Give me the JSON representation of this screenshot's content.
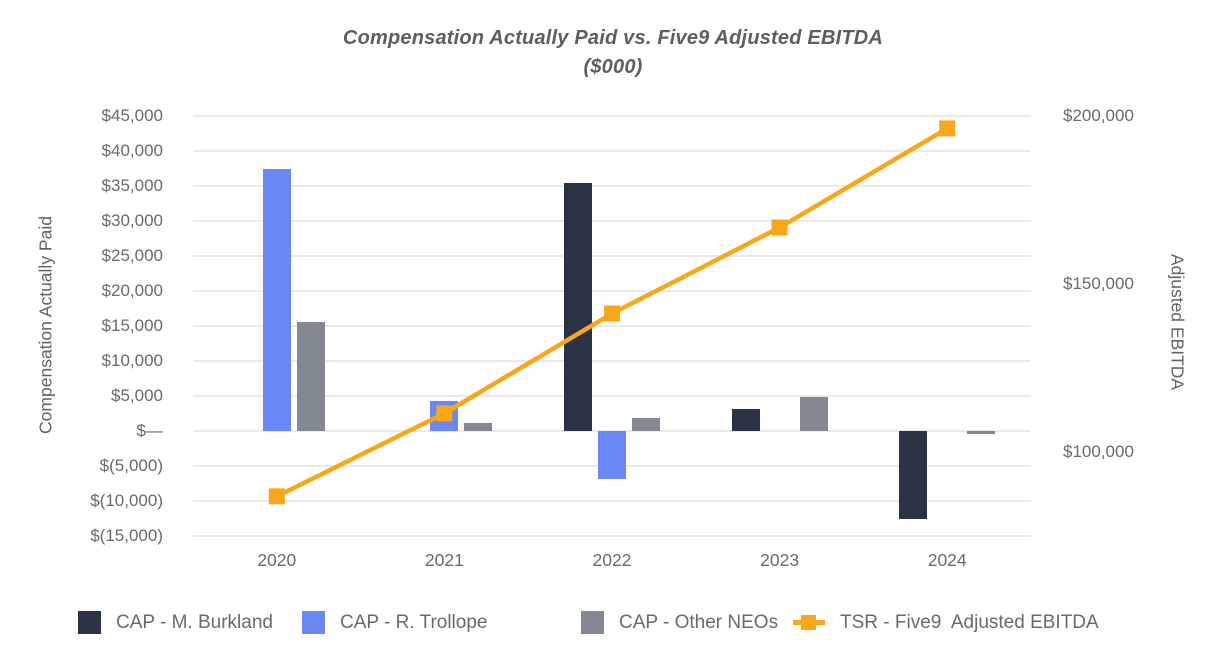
{
  "chart_data": {
    "type": "combo (grouped bar + line, dual y-axis)",
    "title": "Compensation Actually Paid vs. Five9 Adjusted EBITDA",
    "subtitle": "($000)",
    "categories": [
      "2020",
      "2021",
      "2022",
      "2023",
      "2024"
    ],
    "bar_series": [
      {
        "name": "CAP - M. Burkland",
        "color": "#2b3244",
        "values": [
          0,
          0,
          35400,
          3200,
          -12600
        ]
      },
      {
        "name": "CAP - R. Trollope",
        "color": "#6b87f5",
        "values": [
          37400,
          4300,
          -6900,
          0,
          0
        ]
      },
      {
        "name": "CAP - Other NEOs",
        "color": "#838893",
        "values": [
          15600,
          1200,
          1800,
          4900,
          -400
        ]
      }
    ],
    "line_series": {
      "name": "TSR - Five9  Adjusted EBITDA",
      "color": "#f9a61b",
      "axis": "right",
      "values": [
        86800,
        111500,
        141200,
        166800,
        196300
      ]
    },
    "left_axis": {
      "title": "Compensation Actually Paid",
      "max": 45000,
      "min": -15000,
      "tick_step": 5000,
      "tick_labels": [
        "$45,000",
        "$40,000",
        "$35,000",
        "$30,000",
        "$25,000",
        "$20,000",
        "$15,000",
        "$10,000",
        "$5,000",
        "$—",
        "$(5,000)",
        "$(10,000)",
        "$(15,000)"
      ]
    },
    "right_axis": {
      "title": "Adjusted EBITDA",
      "max": 200000,
      "min": 75000,
      "ticks": [
        {
          "label": "$200,000",
          "value": 200000
        },
        {
          "label": "$150,000",
          "value": 150000
        },
        {
          "label": "$100,000",
          "value": 100000
        }
      ]
    },
    "grid": "horizontal gridlines on, no axis lines",
    "legend_position": "bottom",
    "legend": {
      "items": [
        {
          "label": "CAP - M. Burkland",
          "swatch": "square",
          "color": "#2b3244"
        },
        {
          "label": "CAP - R. Trollope",
          "swatch": "square",
          "color": "#6b87f5"
        },
        {
          "label": "CAP - Other NEOs",
          "swatch": "square",
          "color": "#838893"
        },
        {
          "label": "TSR - Five9  Adjusted EBITDA",
          "swatch": "line-marker",
          "color": "#f9a61b"
        }
      ]
    }
  },
  "colors": {
    "background": "#ffffff",
    "gridline": "#eaeaea",
    "title_text": "#5e5e5e",
    "axis_text": "#6a6a6a"
  }
}
